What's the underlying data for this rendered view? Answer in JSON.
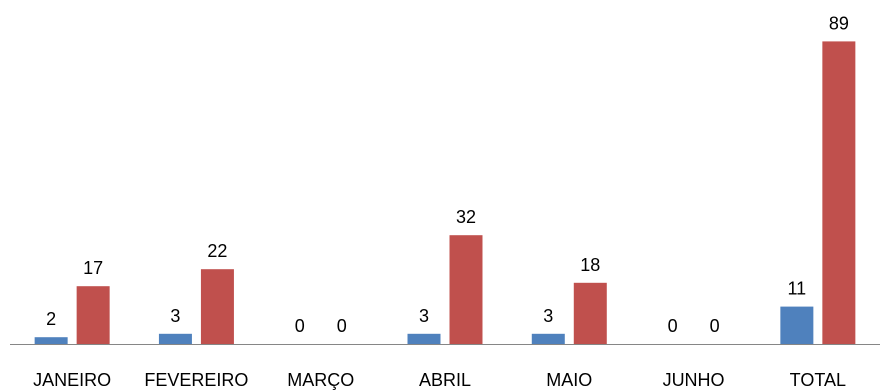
{
  "chart_data": {
    "type": "bar",
    "categories": [
      "JANEIRO",
      "FEVEREIRO",
      "MARÇO",
      "ABRIL",
      "MAIO",
      "JUNHO",
      "TOTAL"
    ],
    "series": [
      {
        "values": [
          2,
          3,
          0,
          3,
          3,
          0,
          11
        ],
        "color": "#4f81bd"
      },
      {
        "values": [
          17,
          22,
          0,
          32,
          18,
          0,
          89
        ],
        "color": "#c0504d"
      }
    ],
    "ylim": [
      0,
      100
    ],
    "grid": false,
    "legend": "none",
    "data_labels": true,
    "axis_color": "#868686"
  }
}
